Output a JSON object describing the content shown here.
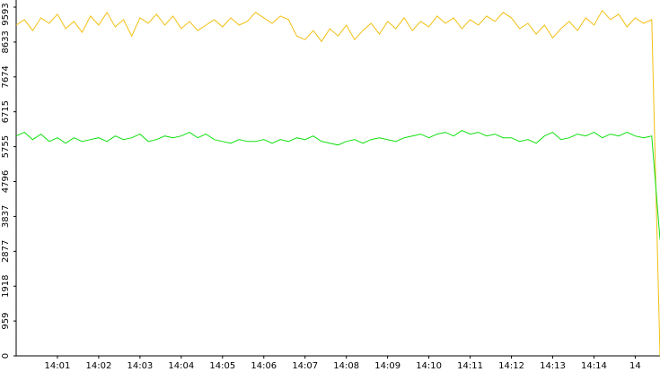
{
  "chart_data": {
    "type": "line",
    "x": [
      0,
      0.2,
      0.4,
      0.6,
      0.8,
      1,
      1.2,
      1.4,
      1.6,
      1.8,
      2,
      2.2,
      2.4,
      2.6,
      2.8,
      3,
      3.2,
      3.4,
      3.6,
      3.8,
      4,
      4.2,
      4.4,
      4.6,
      4.8,
      5,
      5.2,
      5.4,
      5.6,
      5.8,
      6,
      6.2,
      6.4,
      6.6,
      6.8,
      7,
      7.2,
      7.4,
      7.6,
      7.8,
      8,
      8.2,
      8.4,
      8.6,
      8.8,
      9,
      9.2,
      9.4,
      9.6,
      9.8,
      10,
      10.2,
      10.4,
      10.6,
      10.8,
      11,
      11.2,
      11.4,
      11.6,
      11.8,
      12,
      12.2,
      12.4,
      12.6,
      12.8,
      13,
      13.2,
      13.4,
      13.6,
      13.8,
      14,
      14.2,
      14.4,
      14.6,
      14.8,
      15,
      15.2,
      15.4,
      15.6
    ],
    "series": [
      {
        "color": "#f2bf10",
        "values": [
          9100,
          9250,
          8950,
          9300,
          9150,
          9400,
          9000,
          9200,
          8900,
          9350,
          9100,
          9450,
          9050,
          9250,
          8800,
          9300,
          9150,
          9400,
          9100,
          9350,
          9000,
          9200,
          8950,
          9100,
          9250,
          9050,
          9300,
          9100,
          9200,
          9450,
          9300,
          9150,
          9350,
          9250,
          8800,
          8700,
          8950,
          8650,
          9000,
          8800,
          9100,
          8700,
          8950,
          9150,
          8850,
          9200,
          9000,
          9300,
          8950,
          9200,
          9050,
          9350,
          9150,
          9300,
          9000,
          9250,
          9100,
          9350,
          9200,
          9450,
          9300,
          9000,
          9150,
          8850,
          9100,
          8750,
          9000,
          9200,
          8950,
          9300,
          9100,
          9500,
          9250,
          9400,
          9050,
          9300,
          9150,
          9250,
          0
        ]
      },
      {
        "color": "#10e010",
        "values": [
          6050,
          6150,
          5950,
          6100,
          5900,
          6000,
          5850,
          6000,
          5900,
          5950,
          6000,
          5900,
          6050,
          5950,
          6000,
          6100,
          5900,
          5950,
          6050,
          6000,
          6050,
          6150,
          6000,
          6100,
          5950,
          5900,
          5850,
          5950,
          5900,
          5900,
          5950,
          5850,
          5950,
          5900,
          6000,
          5950,
          6050,
          5900,
          5850,
          5800,
          5900,
          5950,
          5850,
          5950,
          6000,
          5950,
          5900,
          6000,
          6050,
          6100,
          6000,
          6100,
          6150,
          6050,
          6200,
          6100,
          6150,
          6050,
          6100,
          6000,
          6000,
          5900,
          5950,
          5850,
          6050,
          6150,
          5950,
          6000,
          6100,
          6050,
          6150,
          6000,
          6100,
          6050,
          6150,
          6050,
          6000,
          6050,
          3200
        ]
      }
    ],
    "xlim": [
      0,
      15.6
    ],
    "xticks": [
      {
        "value": 1,
        "label": "14:01"
      },
      {
        "value": 2,
        "label": "14:02"
      },
      {
        "value": 3,
        "label": "14:03"
      },
      {
        "value": 4,
        "label": "14:04"
      },
      {
        "value": 5,
        "label": "14:05"
      },
      {
        "value": 6,
        "label": "14:06"
      },
      {
        "value": 7,
        "label": "14:07"
      },
      {
        "value": 8,
        "label": "14:08"
      },
      {
        "value": 9,
        "label": "14:09"
      },
      {
        "value": 10,
        "label": "14:10"
      },
      {
        "value": 11,
        "label": "14:11"
      },
      {
        "value": 12,
        "label": "14:12"
      },
      {
        "value": 13,
        "label": "14:13"
      },
      {
        "value": 14,
        "label": "14:14"
      },
      {
        "value": 15,
        "label": "14"
      }
    ],
    "ylim": [
      0,
      9593
    ],
    "yticks": [
      0,
      959,
      1918,
      2877,
      3837,
      4796,
      5755,
      6715,
      7674,
      8633,
      9593
    ]
  }
}
